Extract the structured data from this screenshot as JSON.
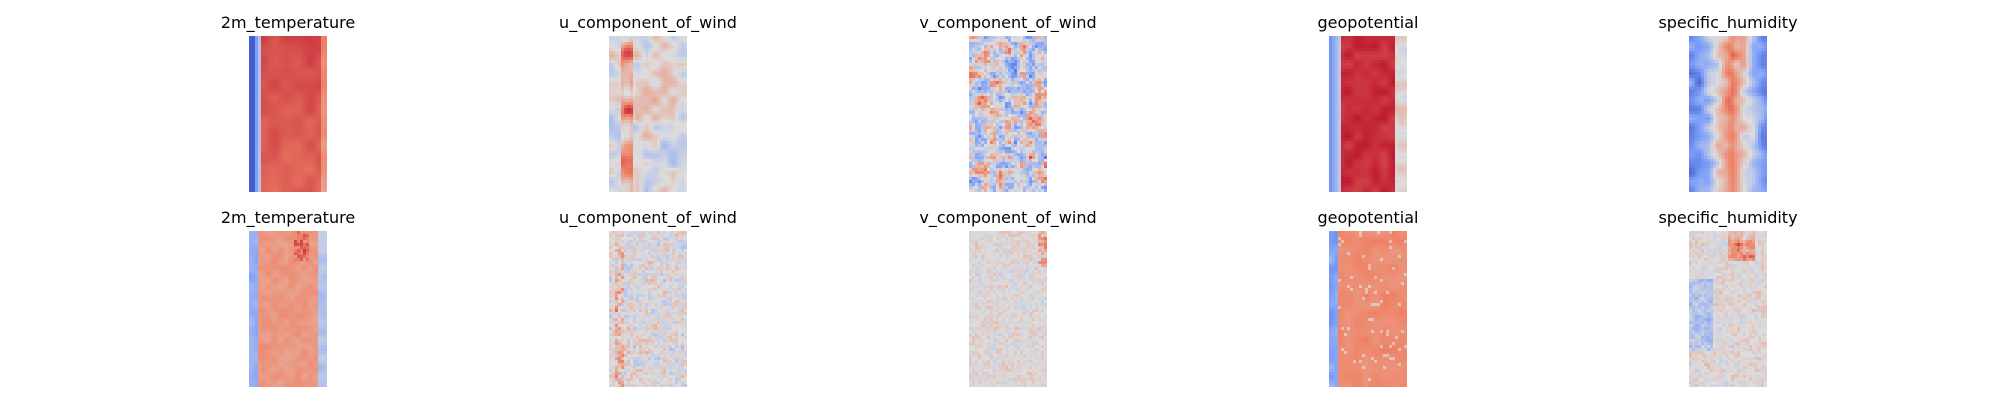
{
  "chart_data": [
    {
      "type": "heatmap",
      "title": "2m_temperature",
      "colormap": "coolwarm",
      "pattern": "temperature",
      "grid": false,
      "axes": "off"
    },
    {
      "type": "heatmap",
      "title": "u_component_of_wind",
      "colormap": "coolwarm",
      "pattern": "uwind",
      "grid": false,
      "axes": "off"
    },
    {
      "type": "heatmap",
      "title": "v_component_of_wind",
      "colormap": "coolwarm",
      "pattern": "vwind",
      "grid": false,
      "axes": "off"
    },
    {
      "type": "heatmap",
      "title": "geopotential",
      "colormap": "coolwarm",
      "pattern": "geopotential",
      "grid": false,
      "axes": "off"
    },
    {
      "type": "heatmap",
      "title": "specific_humidity",
      "colormap": "coolwarm",
      "pattern": "humidity",
      "grid": false,
      "axes": "off"
    },
    {
      "type": "heatmap",
      "title": "2m_temperature",
      "colormap": "coolwarm",
      "pattern": "temperature_diff",
      "grid": false,
      "axes": "off"
    },
    {
      "type": "heatmap",
      "title": "u_component_of_wind",
      "colormap": "coolwarm",
      "pattern": "uwind_diff",
      "grid": false,
      "axes": "off"
    },
    {
      "type": "heatmap",
      "title": "v_component_of_wind",
      "colormap": "coolwarm",
      "pattern": "vwind_diff",
      "grid": false,
      "axes": "off"
    },
    {
      "type": "heatmap",
      "title": "geopotential",
      "colormap": "coolwarm",
      "pattern": "geopotential_diff",
      "grid": false,
      "axes": "off"
    },
    {
      "type": "heatmap",
      "title": "specific_humidity",
      "colormap": "coolwarm",
      "pattern": "humidity_diff",
      "grid": false,
      "axes": "off"
    }
  ],
  "colors": {
    "cold": "#3b4cc0",
    "neutral": "#dddddd",
    "warm": "#b40426"
  }
}
